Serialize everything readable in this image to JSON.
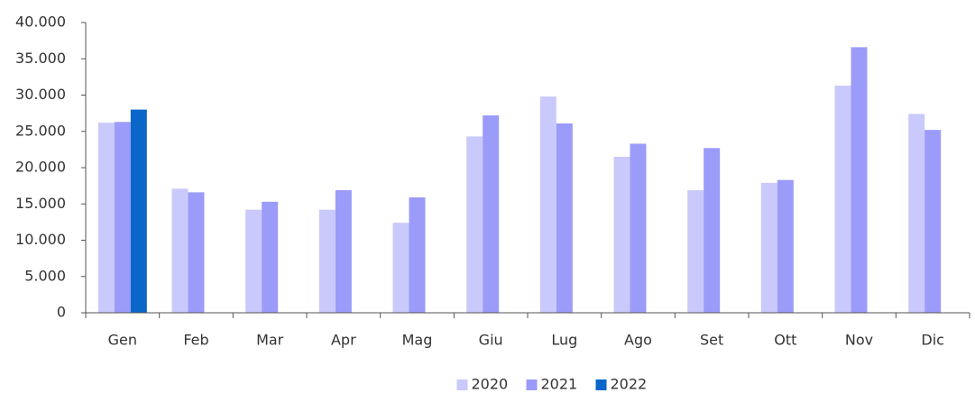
{
  "chart_data": {
    "type": "bar",
    "categories": [
      "Gen",
      "Feb",
      "Mar",
      "Apr",
      "Mag",
      "Giu",
      "Lug",
      "Ago",
      "Set",
      "Ott",
      "Nov",
      "Dic"
    ],
    "series": [
      {
        "name": "2020",
        "color": "#c9c9fb",
        "values": [
          26200,
          17100,
          14200,
          14200,
          12400,
          24300,
          29800,
          21500,
          16900,
          17900,
          31300,
          27400
        ]
      },
      {
        "name": "2021",
        "color": "#9b9bfa",
        "values": [
          26300,
          16600,
          15300,
          16900,
          15900,
          27200,
          26100,
          23300,
          22700,
          18300,
          36600,
          25200
        ]
      },
      {
        "name": "2022",
        "color": "#0a66c8",
        "values": [
          28000,
          null,
          null,
          null,
          null,
          null,
          null,
          null,
          null,
          null,
          null,
          null
        ]
      }
    ],
    "ylim": [
      0,
      40000
    ],
    "yticks": [
      0,
      {
        "value": 5000,
        "label": "5.000"
      },
      {
        "value": 10000,
        "label": "10.000"
      },
      {
        "value": 15000,
        "label": "15.000"
      },
      {
        "value": 20000,
        "label": "20.000"
      },
      {
        "value": 25000,
        "label": "25.000"
      },
      {
        "value": 30000,
        "label": "30.000"
      },
      {
        "value": 35000,
        "label": "35.000"
      },
      {
        "value": 40000,
        "label": "40.000"
      }
    ],
    "grid": false,
    "legend": "bottom"
  }
}
